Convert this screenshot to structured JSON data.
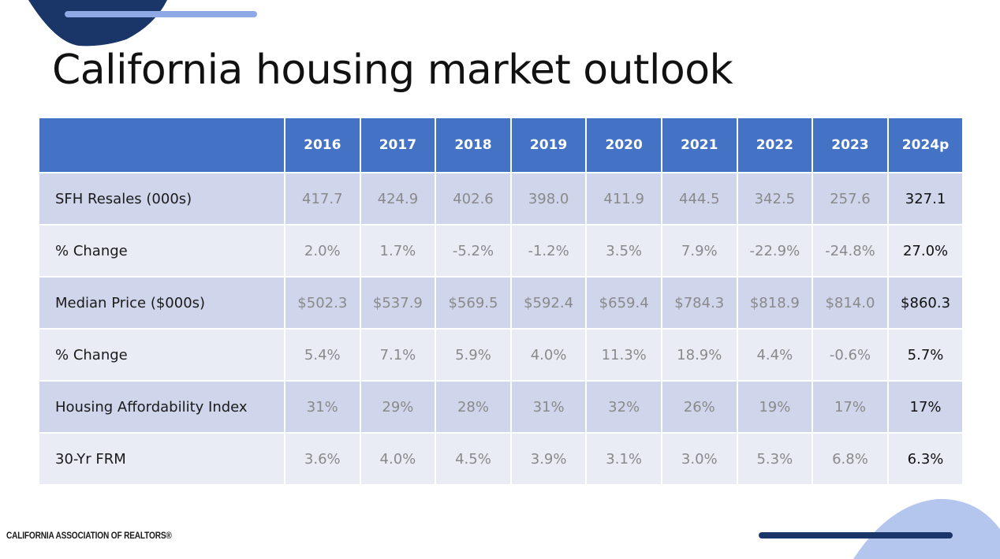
{
  "slide": {
    "title": "California housing market outlook",
    "footer_logo": "CALIFORNIA ASSOCIATION OF REALTORS®",
    "colors": {
      "header": "#4472c4",
      "row_dark": "#cfd5ea",
      "row_light": "#e9ebf5",
      "accent_navy": "#1a3668",
      "accent_light": "#8fa9e6"
    }
  },
  "table": {
    "header_corner": "",
    "years": [
      "2016",
      "2017",
      "2018",
      "2019",
      "2020",
      "2021",
      "2022",
      "2023",
      "2024p"
    ],
    "rows": [
      {
        "label": "SFH Resales (000s)",
        "values": [
          "417.7",
          "424.9",
          "402.6",
          "398.0",
          "411.9",
          "444.5",
          "342.5",
          "257.6",
          "327.1"
        ]
      },
      {
        "label": "% Change",
        "values": [
          "2.0%",
          "1.7%",
          "-5.2%",
          "-1.2%",
          "3.5%",
          "7.9%",
          "-22.9%",
          "-24.8%",
          "27.0%"
        ]
      },
      {
        "label": "Median Price ($000s)",
        "values": [
          "$502.3",
          "$537.9",
          "$569.5",
          "$592.4",
          "$659.4",
          "$784.3",
          "$818.9",
          "$814.0",
          "$860.3"
        ]
      },
      {
        "label": "% Change",
        "values": [
          "5.4%",
          "7.1%",
          "5.9%",
          "4.0%",
          "11.3%",
          "18.9%",
          "4.4%",
          "-0.6%",
          "5.7%"
        ]
      },
      {
        "label": "Housing Affordability Index",
        "values": [
          "31%",
          "29%",
          "28%",
          "31%",
          "32%",
          "26%",
          "19%",
          "17%",
          "17%"
        ]
      },
      {
        "label": "30-Yr FRM",
        "values": [
          "3.6%",
          "4.0%",
          "4.5%",
          "3.9%",
          "3.1%",
          "3.0%",
          "5.3%",
          "6.8%",
          "6.3%"
        ]
      }
    ]
  }
}
